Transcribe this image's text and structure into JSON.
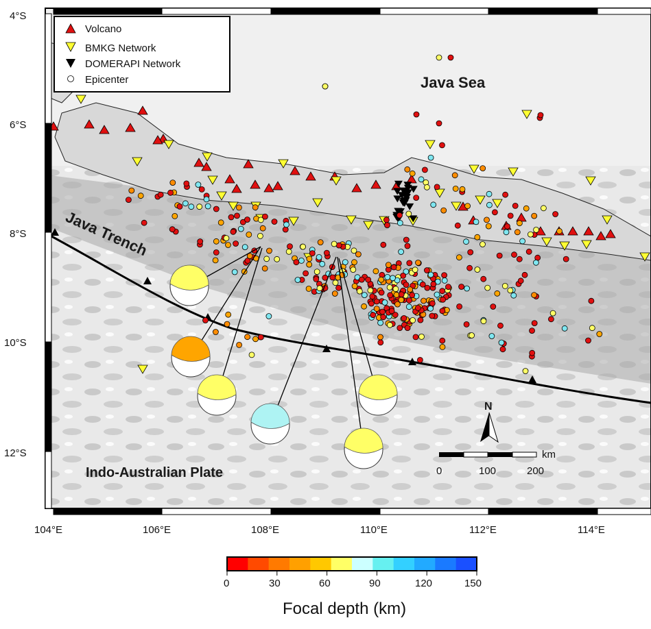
{
  "map": {
    "x_axis": {
      "ticks": [
        "104°E",
        "106°E",
        "108°E",
        "110°E",
        "112°E",
        "114°E"
      ]
    },
    "y_axis": {
      "ticks": [
        "4°S",
        "6°S",
        "8°S",
        "10°S",
        "12°S"
      ]
    },
    "places": {
      "java_sea": "Java Sea",
      "java_trench": "Java Trench",
      "plate": "Indo-Australian Plate"
    },
    "north_label": "N",
    "scale_bar": {
      "unit": "km",
      "ticks": [
        "0",
        "100",
        "200"
      ]
    },
    "colors": {
      "volcano": "#e01010",
      "bmkg": "#ffff33",
      "domerapi": "#000000",
      "epicenter": "#ffffff",
      "trench": "#000000"
    }
  },
  "legend": {
    "items": [
      {
        "label": "Volcano",
        "symbol": "triangle-up",
        "color": "#e01010"
      },
      {
        "label": "BMKG Network",
        "symbol": "triangle-down",
        "color": "#ffff33"
      },
      {
        "label": "DOMERAPI Network",
        "symbol": "triangle-down",
        "color": "#000000"
      },
      {
        "label": "Epicenter",
        "symbol": "circle",
        "color": "#ffffff"
      }
    ]
  },
  "colorbar": {
    "title": "Focal depth (km)",
    "ticks": [
      "0",
      "30",
      "60",
      "90",
      "120",
      "150"
    ],
    "colors": [
      "#ff0000",
      "#ff4a00",
      "#ff7a00",
      "#ffa000",
      "#ffc800",
      "#ffff66",
      "#ccffff",
      "#66f0f0",
      "#33d0ff",
      "#22aaff",
      "#1a7aff",
      "#1a50ff"
    ]
  },
  "focal_mechanisms": [
    {
      "color": "#ffff66"
    },
    {
      "color": "#ffa500"
    },
    {
      "color": "#ffff66"
    },
    {
      "color": "#aef3f3"
    },
    {
      "color": "#ffff66"
    },
    {
      "color": "#ffff66"
    }
  ]
}
